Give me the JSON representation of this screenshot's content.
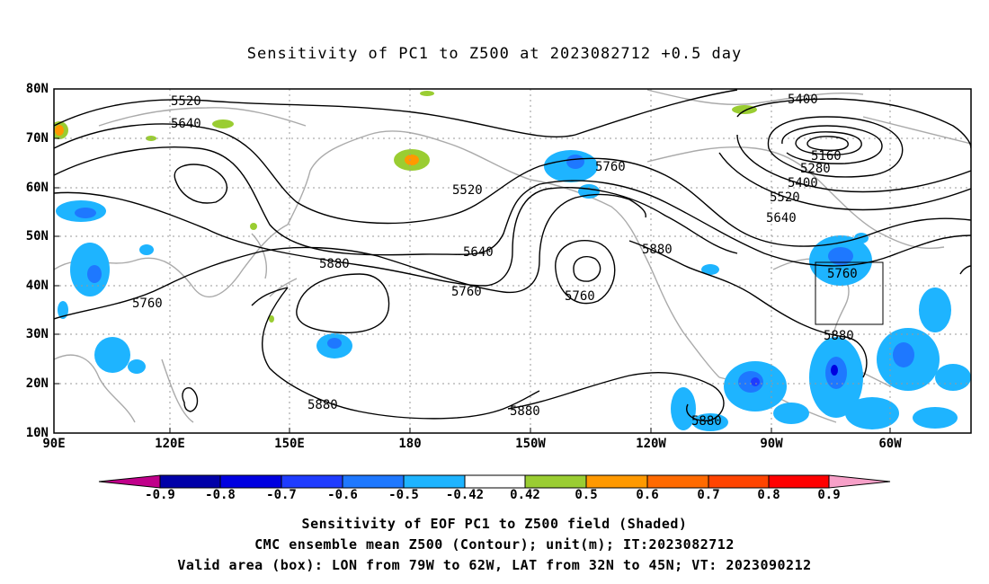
{
  "title": "Sensitivity of PC1 to Z500 at 2023082712 +0.5 day",
  "lat_labels": [
    "80N",
    "70N",
    "60N",
    "50N",
    "40N",
    "30N",
    "20N",
    "10N"
  ],
  "lon_labels": [
    "90E",
    "120E",
    "150E",
    "180",
    "150W",
    "120W",
    "90W",
    "60W"
  ],
  "contour_labels": [
    "5520",
    "5640",
    "5520",
    "5760",
    "5400",
    "5160",
    "5280",
    "5400",
    "5520",
    "5640",
    "5640",
    "5760",
    "5760",
    "5880",
    "5880",
    "5760",
    "5760",
    "5880",
    "5880",
    "5880",
    "5880"
  ],
  "colorbar": {
    "labels": [
      "-0.9",
      "-0.8",
      "-0.7",
      "-0.6",
      "-0.5",
      "-0.42",
      "0.42",
      "0.5",
      "0.6",
      "0.7",
      "0.8",
      "0.9"
    ],
    "colors": [
      "#c0008a",
      "#0000a8",
      "#0000e0",
      "#1f3cff",
      "#1e78ff",
      "#1eb4ff",
      "#00c8ff",
      "#ffffff",
      "#9acd32",
      "#ff9900",
      "#ff6a00",
      "#ff4400",
      "#ff0000",
      "#f7a0c8"
    ]
  },
  "captions": [
    "Sensitivity of EOF PC1 to Z500 field (Shaded)",
    "CMC ensemble mean Z500 (Contour); unit(m); IT:2023082712",
    "Valid area (box): LON from 79W to 62W, LAT from 32N to 45N; VT: 2023090212"
  ]
}
